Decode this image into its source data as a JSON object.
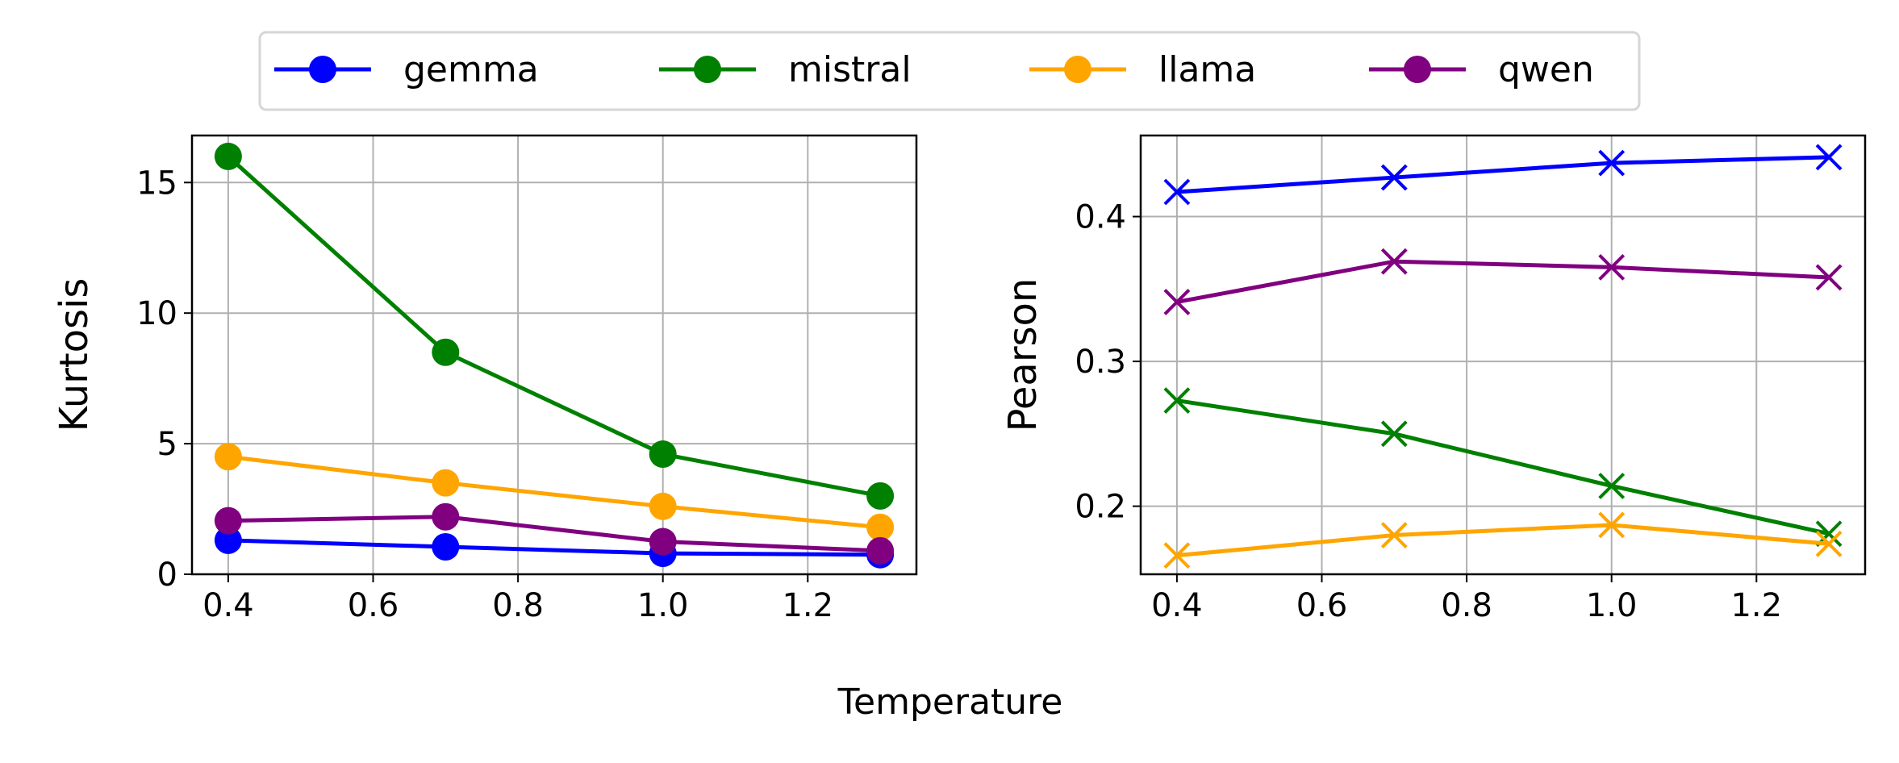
{
  "figure": {
    "xlabel": "Temperature"
  },
  "legend": {
    "placement": "top-center",
    "entries": [
      {
        "label": "gemma",
        "color": "#0000ff"
      },
      {
        "label": "mistral",
        "color": "#008000"
      },
      {
        "label": "llama",
        "color": "#ffa500"
      },
      {
        "label": "qwen",
        "color": "#800080"
      }
    ]
  },
  "chart_data": [
    {
      "type": "line",
      "marker": "circle",
      "ylabel": "Kurtosis",
      "xlabel": "",
      "xlim": [
        0.35,
        1.35
      ],
      "ylim": [
        0,
        16.8
      ],
      "xticks": [
        0.4,
        0.6,
        0.8,
        1.0,
        1.2
      ],
      "xtick_labels": [
        "0.4",
        "0.6",
        "0.8",
        "1.0",
        "1.2"
      ],
      "yticks": [
        0,
        5,
        10,
        15
      ],
      "ytick_labels": [
        "0",
        "5",
        "10",
        "15"
      ],
      "grid": true,
      "x": [
        0.4,
        0.7,
        1.0,
        1.3
      ],
      "series": [
        {
          "name": "gemma",
          "color": "#0000ff",
          "values": [
            1.3,
            1.05,
            0.8,
            0.75
          ]
        },
        {
          "name": "mistral",
          "color": "#008000",
          "values": [
            16.0,
            8.5,
            4.6,
            3.0
          ]
        },
        {
          "name": "llama",
          "color": "#ffa500",
          "values": [
            4.5,
            3.5,
            2.6,
            1.8
          ]
        },
        {
          "name": "qwen",
          "color": "#800080",
          "values": [
            2.05,
            2.2,
            1.25,
            0.9
          ]
        }
      ]
    },
    {
      "type": "line",
      "marker": "x",
      "ylabel": "Pearson",
      "xlabel": "",
      "xlim": [
        0.35,
        1.35
      ],
      "ylim": [
        0.153,
        0.456
      ],
      "xticks": [
        0.4,
        0.6,
        0.8,
        1.0,
        1.2
      ],
      "xtick_labels": [
        "0.4",
        "0.6",
        "0.8",
        "1.0",
        "1.2"
      ],
      "yticks": [
        0.2,
        0.3,
        0.4
      ],
      "ytick_labels": [
        "0.2",
        "0.3",
        "0.4"
      ],
      "grid": true,
      "x": [
        0.4,
        0.7,
        1.0,
        1.3
      ],
      "series": [
        {
          "name": "gemma",
          "color": "#0000ff",
          "values": [
            0.417,
            0.427,
            0.437,
            0.441
          ]
        },
        {
          "name": "mistral",
          "color": "#008000",
          "values": [
            0.273,
            0.25,
            0.214,
            0.181
          ]
        },
        {
          "name": "llama",
          "color": "#ffa500",
          "values": [
            0.166,
            0.18,
            0.187,
            0.174
          ]
        },
        {
          "name": "qwen",
          "color": "#800080",
          "values": [
            0.341,
            0.369,
            0.365,
            0.358
          ]
        }
      ]
    }
  ]
}
